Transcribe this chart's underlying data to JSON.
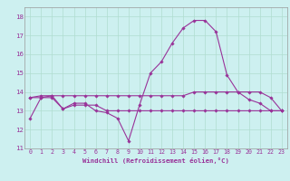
{
  "xlabel": "Windchill (Refroidissement éolien,°C)",
  "background_color": "#cdf0f0",
  "grid_color": "#b0ddd0",
  "line_color": "#993399",
  "xlim": [
    -0.5,
    23.5
  ],
  "ylim": [
    11,
    18.5
  ],
  "xticks": [
    0,
    1,
    2,
    3,
    4,
    5,
    6,
    7,
    8,
    9,
    10,
    11,
    12,
    13,
    14,
    15,
    16,
    17,
    18,
    19,
    20,
    21,
    22,
    23
  ],
  "yticks": [
    11,
    12,
    13,
    14,
    15,
    16,
    17,
    18
  ],
  "series": [
    [
      12.6,
      13.7,
      13.8,
      13.1,
      13.4,
      13.4,
      13.0,
      12.9,
      12.6,
      11.4,
      13.3,
      15.0,
      15.6,
      16.6,
      17.4,
      17.8,
      17.8,
      17.2,
      14.9,
      14.0,
      13.6,
      13.4,
      13.0,
      13.0
    ],
    [
      13.7,
      13.8,
      13.8,
      13.8,
      13.8,
      13.8,
      13.8,
      13.8,
      13.8,
      13.8,
      13.8,
      13.8,
      13.8,
      13.8,
      13.8,
      14.0,
      14.0,
      14.0,
      14.0,
      14.0,
      14.0,
      14.0,
      13.7,
      13.0
    ],
    [
      13.7,
      13.7,
      13.7,
      13.1,
      13.3,
      13.3,
      13.3,
      13.0,
      13.0,
      13.0,
      13.0,
      13.0,
      13.0,
      13.0,
      13.0,
      13.0,
      13.0,
      13.0,
      13.0,
      13.0,
      13.0,
      13.0,
      13.0,
      13.0
    ]
  ],
  "tick_fontsize": 4.8,
  "xlabel_fontsize": 5.2,
  "marker": "D",
  "markersize": 1.8,
  "linewidth": 0.8
}
